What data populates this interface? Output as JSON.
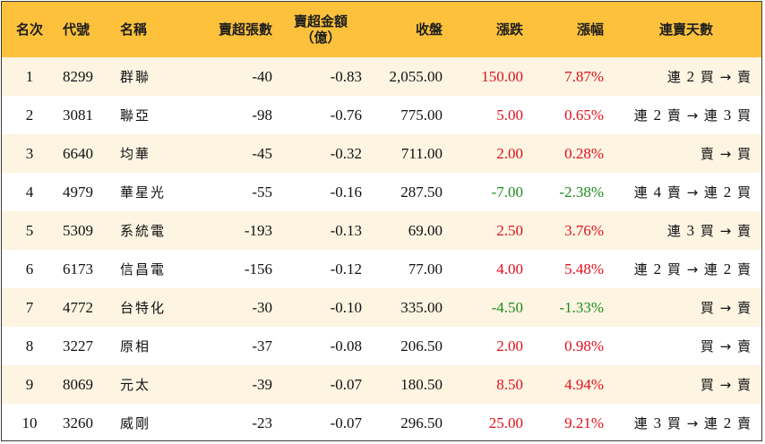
{
  "colors": {
    "header_bg": "#fdc13c",
    "row_alt_bg": "#fdf4e2",
    "up": "#e0101c",
    "down": "#1e8a1e"
  },
  "headers": {
    "rank": "名次",
    "code": "代號",
    "name": "名稱",
    "sell_lots": "賣超張數",
    "sell_amount_line1": "賣超金額",
    "sell_amount_line2": "（億）",
    "close": "收盤",
    "change": "漲跌",
    "change_pct": "漲幅",
    "streak": "連賣天數"
  },
  "rows": [
    {
      "rank": "1",
      "code": "8299",
      "name": "群聯",
      "sell_lots": "-40",
      "sell_amount": "-0.83",
      "close": "2,055.00",
      "change": "150.00",
      "change_pct": "7.87%",
      "dir": "up",
      "streak": "連 2 買 → 賣"
    },
    {
      "rank": "2",
      "code": "3081",
      "name": "聯亞",
      "sell_lots": "-98",
      "sell_amount": "-0.76",
      "close": "775.00",
      "change": "5.00",
      "change_pct": "0.65%",
      "dir": "up",
      "streak": "連 2 賣 → 連 3 買"
    },
    {
      "rank": "3",
      "code": "6640",
      "name": "均華",
      "sell_lots": "-45",
      "sell_amount": "-0.32",
      "close": "711.00",
      "change": "2.00",
      "change_pct": "0.28%",
      "dir": "up",
      "streak": "賣 → 買"
    },
    {
      "rank": "4",
      "code": "4979",
      "name": "華星光",
      "sell_lots": "-55",
      "sell_amount": "-0.16",
      "close": "287.50",
      "change": "-7.00",
      "change_pct": "-2.38%",
      "dir": "down",
      "streak": "連 4 賣 → 連 2 買"
    },
    {
      "rank": "5",
      "code": "5309",
      "name": "系統電",
      "sell_lots": "-193",
      "sell_amount": "-0.13",
      "close": "69.00",
      "change": "2.50",
      "change_pct": "3.76%",
      "dir": "up",
      "streak": "連 3 買 → 賣"
    },
    {
      "rank": "6",
      "code": "6173",
      "name": "信昌電",
      "sell_lots": "-156",
      "sell_amount": "-0.12",
      "close": "77.00",
      "change": "4.00",
      "change_pct": "5.48%",
      "dir": "up",
      "streak": "連 2 買 → 連 2 賣"
    },
    {
      "rank": "7",
      "code": "4772",
      "name": "台特化",
      "sell_lots": "-30",
      "sell_amount": "-0.10",
      "close": "335.00",
      "change": "-4.50",
      "change_pct": "-1.33%",
      "dir": "down",
      "streak": "買 → 賣"
    },
    {
      "rank": "8",
      "code": "3227",
      "name": "原相",
      "sell_lots": "-37",
      "sell_amount": "-0.08",
      "close": "206.50",
      "change": "2.00",
      "change_pct": "0.98%",
      "dir": "up",
      "streak": "買 → 賣"
    },
    {
      "rank": "9",
      "code": "8069",
      "name": "元太",
      "sell_lots": "-39",
      "sell_amount": "-0.07",
      "close": "180.50",
      "change": "8.50",
      "change_pct": "4.94%",
      "dir": "up",
      "streak": "買 → 賣"
    },
    {
      "rank": "10",
      "code": "3260",
      "name": "威剛",
      "sell_lots": "-23",
      "sell_amount": "-0.07",
      "close": "296.50",
      "change": "25.00",
      "change_pct": "9.21%",
      "dir": "up",
      "streak": "連 3 買 → 連 2 賣"
    }
  ]
}
